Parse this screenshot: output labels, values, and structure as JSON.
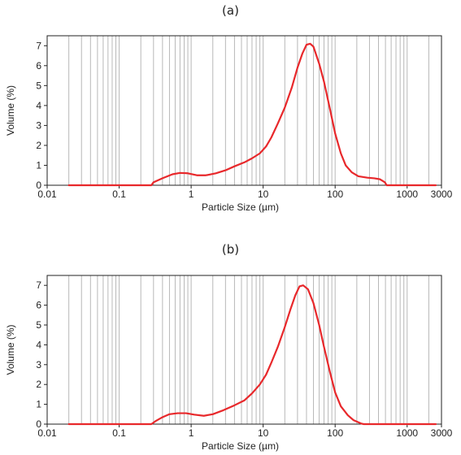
{
  "chart_data": [
    {
      "type": "line",
      "panel_label": "(a)",
      "xlabel": "Particle Size (µm)",
      "ylabel": "Volume (%)",
      "xscale": "log",
      "xlim": [
        0.01,
        3000
      ],
      "ylim": [
        0,
        7.5
      ],
      "xticks": [
        "0.01",
        "0.1",
        "1",
        "10",
        "100",
        "1000",
        "3000"
      ],
      "yticks": [
        "0",
        "1",
        "2",
        "3",
        "4",
        "5",
        "6",
        "7"
      ],
      "grid": true,
      "series": [
        {
          "color": "#e8282b",
          "points": [
            [
              0.02,
              0
            ],
            [
              0.28,
              0
            ],
            [
              0.3,
              0.15
            ],
            [
              0.4,
              0.35
            ],
            [
              0.55,
              0.55
            ],
            [
              0.7,
              0.62
            ],
            [
              0.9,
              0.6
            ],
            [
              1.2,
              0.5
            ],
            [
              1.6,
              0.5
            ],
            [
              2.2,
              0.6
            ],
            [
              3.0,
              0.75
            ],
            [
              4.0,
              0.95
            ],
            [
              5.5,
              1.15
            ],
            [
              7.0,
              1.35
            ],
            [
              9.0,
              1.6
            ],
            [
              11,
              1.95
            ],
            [
              13,
              2.4
            ],
            [
              16,
              3.1
            ],
            [
              20,
              3.9
            ],
            [
              25,
              4.9
            ],
            [
              30,
              5.9
            ],
            [
              35,
              6.6
            ],
            [
              40,
              7.05
            ],
            [
              45,
              7.1
            ],
            [
              50,
              6.95
            ],
            [
              60,
              6.1
            ],
            [
              70,
              5.2
            ],
            [
              85,
              3.8
            ],
            [
              100,
              2.6
            ],
            [
              120,
              1.6
            ],
            [
              140,
              1.0
            ],
            [
              170,
              0.65
            ],
            [
              210,
              0.45
            ],
            [
              280,
              0.38
            ],
            [
              350,
              0.35
            ],
            [
              420,
              0.3
            ],
            [
              490,
              0.15
            ],
            [
              520,
              0
            ],
            [
              2500,
              0
            ]
          ]
        }
      ]
    },
    {
      "type": "line",
      "panel_label": "(b)",
      "xlabel": "Particle Size (µm)",
      "ylabel": "Volume (%)",
      "xscale": "log",
      "xlim": [
        0.01,
        3000
      ],
      "ylim": [
        0,
        7.5
      ],
      "xticks": [
        "0.01",
        "0.1",
        "1",
        "10",
        "100",
        "1000",
        "3000"
      ],
      "yticks": [
        "0",
        "1",
        "2",
        "3",
        "4",
        "5",
        "6",
        "7"
      ],
      "grid": true,
      "series": [
        {
          "color": "#e8282b",
          "points": [
            [
              0.02,
              0
            ],
            [
              0.28,
              0
            ],
            [
              0.32,
              0.15
            ],
            [
              0.4,
              0.35
            ],
            [
              0.5,
              0.5
            ],
            [
              0.65,
              0.55
            ],
            [
              0.85,
              0.55
            ],
            [
              1.1,
              0.48
            ],
            [
              1.5,
              0.42
            ],
            [
              2.0,
              0.5
            ],
            [
              2.8,
              0.7
            ],
            [
              4.0,
              0.95
            ],
            [
              5.5,
              1.2
            ],
            [
              7.0,
              1.55
            ],
            [
              9.0,
              2.0
            ],
            [
              11,
              2.5
            ],
            [
              13,
              3.1
            ],
            [
              16,
              3.9
            ],
            [
              20,
              4.9
            ],
            [
              24,
              5.8
            ],
            [
              28,
              6.5
            ],
            [
              32,
              6.95
            ],
            [
              36,
              7.0
            ],
            [
              42,
              6.8
            ],
            [
              50,
              6.1
            ],
            [
              60,
              5.0
            ],
            [
              70,
              3.9
            ],
            [
              85,
              2.6
            ],
            [
              100,
              1.6
            ],
            [
              120,
              0.9
            ],
            [
              150,
              0.45
            ],
            [
              180,
              0.2
            ],
            [
              230,
              0.03
            ],
            [
              250,
              0
            ],
            [
              2500,
              0
            ]
          ]
        }
      ]
    }
  ]
}
